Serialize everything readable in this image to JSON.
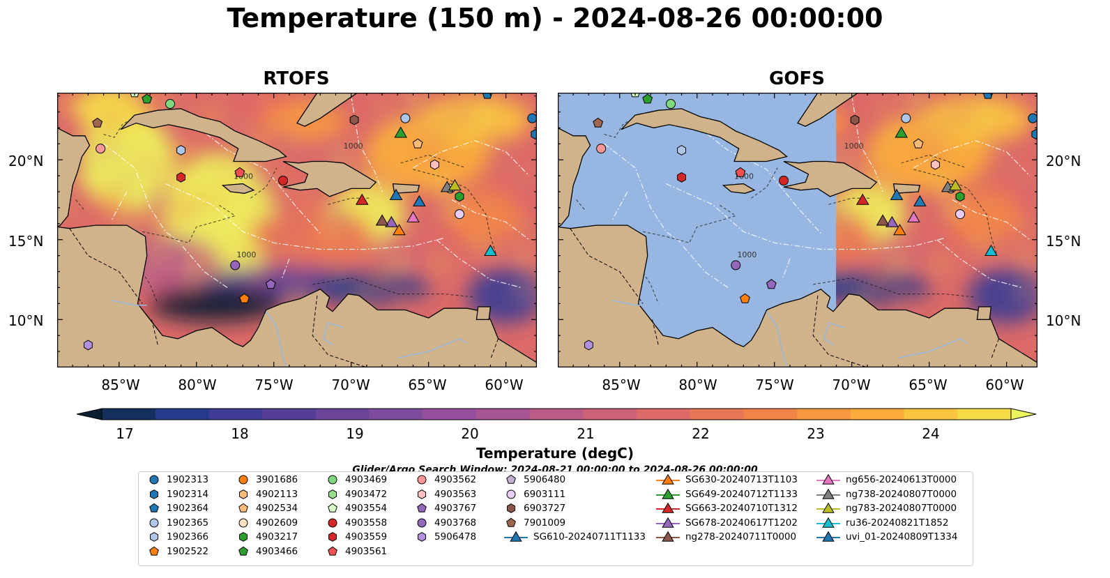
{
  "title": "Temperature (150 m) - 2024-08-26 00:00:00",
  "panels": [
    {
      "title": "RTOFS",
      "model_field": "full"
    },
    {
      "title": "GOFS",
      "model_field": "east-of-71W"
    }
  ],
  "map": {
    "lon_ticks": [
      "85°W",
      "80°W",
      "75°W",
      "70°W",
      "65°W",
      "60°W"
    ],
    "lat_ticks": [
      "20°N",
      "15°N",
      "10°N"
    ],
    "land_color": "#d1b38b",
    "ocean_color": "#97b6e1",
    "contour_labels": [
      "1000",
      "1000",
      "1000"
    ]
  },
  "colorbar": {
    "ticks": [
      "17",
      "18",
      "19",
      "20",
      "21",
      "22",
      "23",
      "24"
    ],
    "label": "Temperature (degC)",
    "colors": [
      "#0b1f33",
      "#13305c",
      "#253a8a",
      "#3e3c94",
      "#543e98",
      "#6a4599",
      "#7e4c9c",
      "#954f9c",
      "#a85593",
      "#ba5b88",
      "#cc6178",
      "#dc6a68",
      "#e97755",
      "#f28447",
      "#f8973f",
      "#fbac3b",
      "#f9c43f",
      "#f5dc47",
      "#eef45c"
    ]
  },
  "search_window": "Glider/Argo Search Window: 2024-08-21 00:00:00 to 2024-08-26 00:00:00",
  "legend": [
    {
      "label": "1902313",
      "marker": "circle",
      "color": "#1f77b4"
    },
    {
      "label": "1902314",
      "marker": "hexagon",
      "color": "#1f77b4"
    },
    {
      "label": "1902364",
      "marker": "pentagon",
      "color": "#1f77b4"
    },
    {
      "label": "1902365",
      "marker": "circle",
      "color": "#aec7e8"
    },
    {
      "label": "1902366",
      "marker": "hexagon",
      "color": "#aec7e8"
    },
    {
      "label": "1902522",
      "marker": "pentagon",
      "color": "#ff7f0e"
    },
    {
      "label": "3901686",
      "marker": "circle",
      "color": "#ff7f0e"
    },
    {
      "label": "4902113",
      "marker": "hexagon",
      "color": "#ffbb78"
    },
    {
      "label": "4902534",
      "marker": "pentagon",
      "color": "#ffbb78"
    },
    {
      "label": "4902609",
      "marker": "circle",
      "color": "#ffe0c0"
    },
    {
      "label": "4903217",
      "marker": "hexagon",
      "color": "#2ca02c"
    },
    {
      "label": "4903466",
      "marker": "pentagon",
      "color": "#2ca02c"
    },
    {
      "label": "4903469",
      "marker": "circle",
      "color": "#7fd97f"
    },
    {
      "label": "4903472",
      "marker": "hexagon",
      "color": "#98df8a"
    },
    {
      "label": "4903554",
      "marker": "pentagon",
      "color": "#d8ffc8"
    },
    {
      "label": "4903558",
      "marker": "circle",
      "color": "#d62728"
    },
    {
      "label": "4903559",
      "marker": "hexagon",
      "color": "#d62728"
    },
    {
      "label": "4903561",
      "marker": "pentagon",
      "color": "#f05050"
    },
    {
      "label": "4903562",
      "marker": "circle",
      "color": "#ff9896"
    },
    {
      "label": "4903563",
      "marker": "hexagon",
      "color": "#ffc0c0"
    },
    {
      "label": "4903767",
      "marker": "pentagon",
      "color": "#9467bd"
    },
    {
      "label": "4903768",
      "marker": "circle",
      "color": "#9467bd"
    },
    {
      "label": "5906478",
      "marker": "hexagon",
      "color": "#b38fe0"
    },
    {
      "label": "5906480",
      "marker": "pentagon",
      "color": "#c5b0d5"
    },
    {
      "label": "6903111",
      "marker": "circle",
      "color": "#e8ccf5"
    },
    {
      "label": "6903727",
      "marker": "hexagon",
      "color": "#8c564b"
    },
    {
      "label": "7901009",
      "marker": "pentagon",
      "color": "#a0654f"
    },
    {
      "label": "SG610-20240711T1133",
      "marker": "triangle",
      "color": "#1f77b4"
    },
    {
      "label": "SG630-20240713T1103",
      "marker": "triangle",
      "color": "#ff7f0e"
    },
    {
      "label": "SG649-20240712T1133",
      "marker": "triangle",
      "color": "#2ca02c"
    },
    {
      "label": "SG663-20240710T1312",
      "marker": "triangle",
      "color": "#d62728"
    },
    {
      "label": "SG678-20240617T1202",
      "marker": "triangle",
      "color": "#9467bd"
    },
    {
      "label": "ng278-20240711T0000",
      "marker": "triangle",
      "color": "#8c564b"
    },
    {
      "label": "ng656-20240613T0000",
      "marker": "triangle",
      "color": "#e377c2"
    },
    {
      "label": "ng738-20240807T0000",
      "marker": "triangle",
      "color": "#7f7f7f"
    },
    {
      "label": "ng783-20240807T0000",
      "marker": "triangle",
      "color": "#bcbd22"
    },
    {
      "label": "ru36-20240821T1852",
      "marker": "triangle",
      "color": "#17becf"
    },
    {
      "label": "uvi_01-20240809T1334",
      "marker": "triangle",
      "color": "#1f77b4"
    }
  ],
  "platform_positions": [
    {
      "id": "1902313",
      "lon": -58.3,
      "lat": 22.6
    },
    {
      "id": "1902314",
      "lon": -58.1,
      "lat": 21.6
    },
    {
      "id": "1902364",
      "lon": -61.2,
      "lat": 24.1
    },
    {
      "id": "1902365",
      "lon": -66.5,
      "lat": 22.6
    },
    {
      "id": "1902366",
      "lon": -81.0,
      "lat": 20.6
    },
    {
      "id": "1902522",
      "lon": -76.9,
      "lat": 11.3
    },
    {
      "id": "4902534",
      "lon": -65.7,
      "lat": 21.0
    },
    {
      "id": "4902609",
      "lon": -63.6,
      "lat": 18.2
    },
    {
      "id": "4903217",
      "lon": -63.0,
      "lat": 17.7
    },
    {
      "id": "4903466",
      "lon": -83.2,
      "lat": 23.8
    },
    {
      "id": "4903469",
      "lon": -81.7,
      "lat": 23.5
    },
    {
      "id": "4903554",
      "lon": -84.0,
      "lat": 24.2
    },
    {
      "id": "4903558",
      "lon": -74.4,
      "lat": 18.7
    },
    {
      "id": "4903559",
      "lon": -81.0,
      "lat": 18.9
    },
    {
      "id": "4903561",
      "lon": -77.2,
      "lat": 19.2
    },
    {
      "id": "4903562",
      "lon": -86.2,
      "lat": 20.7
    },
    {
      "id": "4903563",
      "lon": -64.6,
      "lat": 19.7
    },
    {
      "id": "4903767",
      "lon": -75.2,
      "lat": 12.2
    },
    {
      "id": "4903768",
      "lon": -77.5,
      "lat": 13.4
    },
    {
      "id": "5906478",
      "lon": -87.0,
      "lat": 8.4
    },
    {
      "id": "6903111",
      "lon": -63.0,
      "lat": 16.6
    },
    {
      "id": "6903727",
      "lon": -69.8,
      "lat": 22.5
    },
    {
      "id": "7901009",
      "lon": -86.4,
      "lat": 22.3
    },
    {
      "id": "SG610-20240711T1133",
      "lon": -67.1,
      "lat": 17.8
    },
    {
      "id": "SG630-20240713T1103",
      "lon": -66.9,
      "lat": 15.6
    },
    {
      "id": "SG649-20240712T1133",
      "lon": -66.8,
      "lat": 21.7
    },
    {
      "id": "SG663-20240710T1312",
      "lon": -69.3,
      "lat": 17.5
    },
    {
      "id": "SG678-20240617T1202",
      "lon": -67.4,
      "lat": 16.1
    },
    {
      "id": "ng278-20240711T0000",
      "lon": -68.0,
      "lat": 16.2
    },
    {
      "id": "ng656-20240613T0000",
      "lon": -66.0,
      "lat": 16.4
    },
    {
      "id": "ng738-20240807T0000",
      "lon": -63.8,
      "lat": 18.3
    },
    {
      "id": "ng783-20240807T0000",
      "lon": -63.3,
      "lat": 18.4
    },
    {
      "id": "ru36-20240821T1852",
      "lon": -61.0,
      "lat": 14.3
    },
    {
      "id": "uvi_01-20240809T1334",
      "lon": -65.6,
      "lat": 17.4
    }
  ]
}
